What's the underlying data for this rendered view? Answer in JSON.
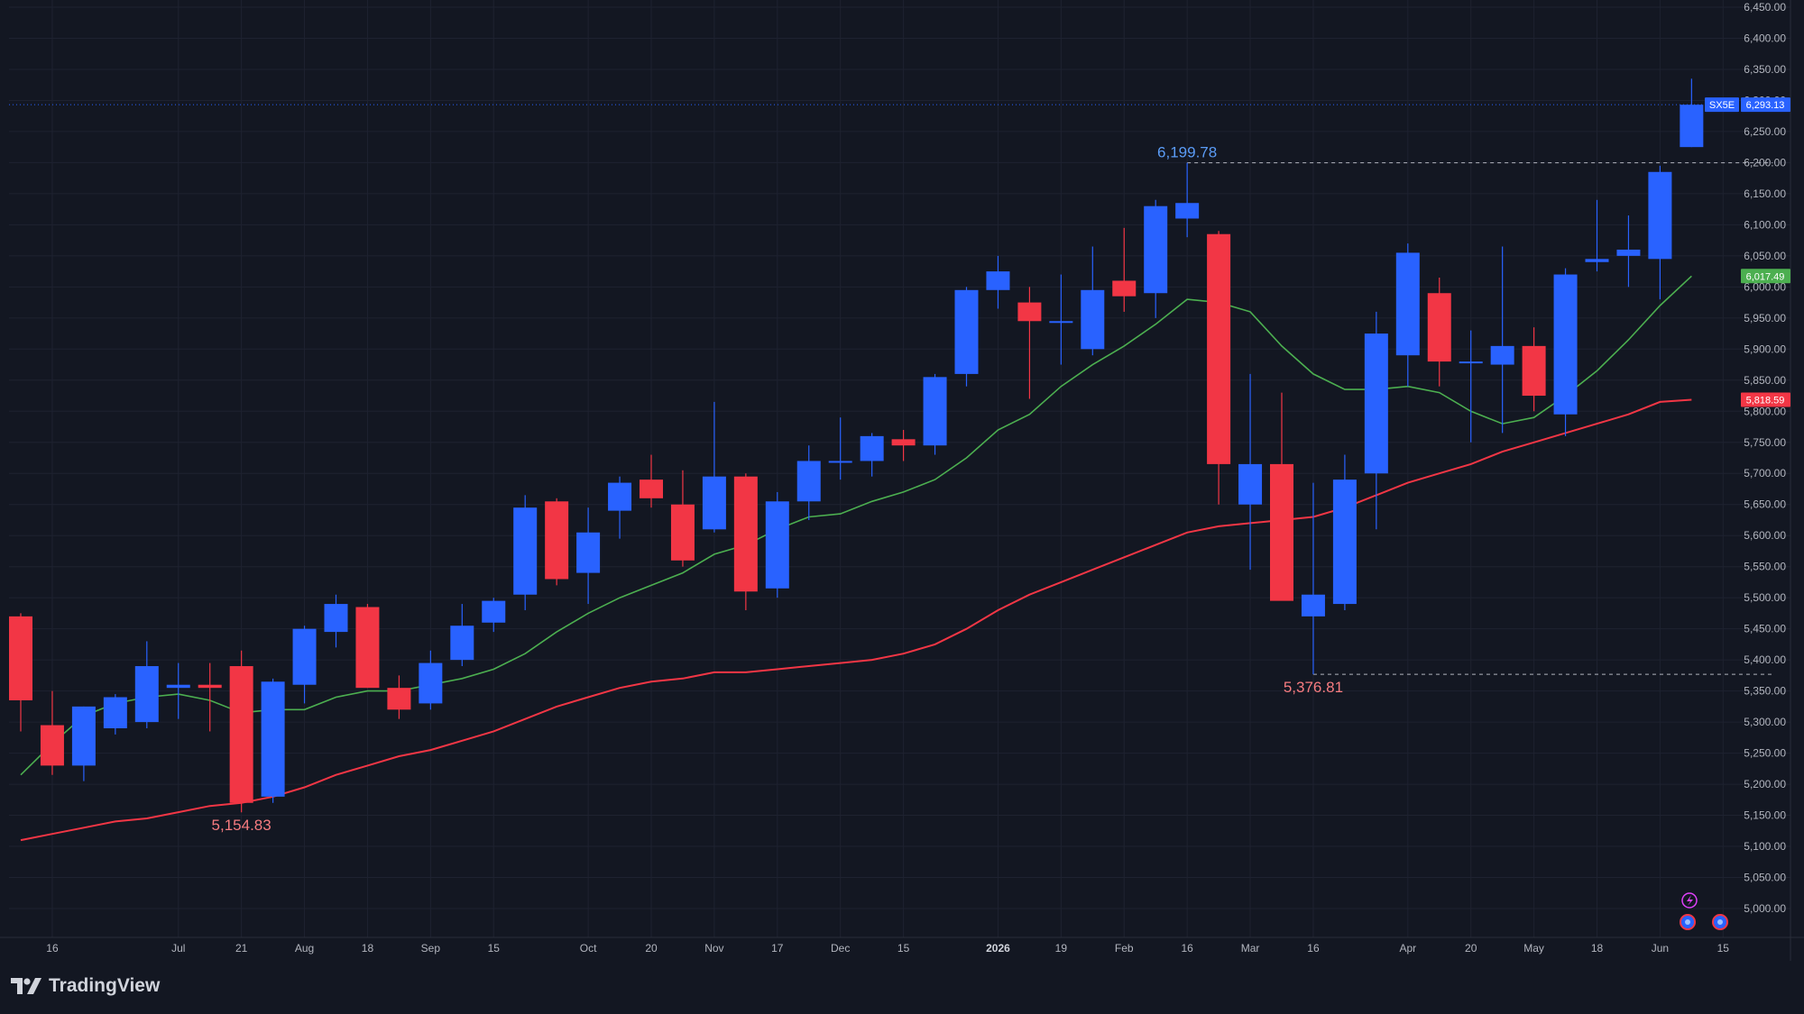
{
  "branding": {
    "name": "TradingView",
    "logo_icon": "tradingview-logo-icon"
  },
  "colors": {
    "background": "#131722",
    "grid": "#1e2230",
    "up": "#2962ff",
    "down": "#f23645",
    "ma_fast": "#4caf50",
    "ma_slow": "#f23645",
    "axis_text": "#b2b5be",
    "high_label": "#5b9cf6",
    "low_label": "#f77c80"
  },
  "chart_data": {
    "type": "candlestick",
    "symbol": "SX5E",
    "timeframe": "weekly",
    "ylim": [
      4950,
      6460
    ],
    "y_ticks": [
      5000,
      5050,
      5100,
      5150,
      5200,
      5250,
      5300,
      5350,
      5400,
      5450,
      5500,
      5550,
      5600,
      5650,
      5700,
      5750,
      5800,
      5850,
      5900,
      5950,
      6000,
      6050,
      6100,
      6150,
      6200,
      6250,
      6300,
      6350,
      6400,
      6450
    ],
    "y_tick_labels": [
      "5,000.00",
      "5,050.00",
      "5,100.00",
      "5,150.00",
      "5,200.00",
      "5,250.00",
      "5,300.00",
      "5,350.00",
      "5,400.00",
      "5,450.00",
      "5,500.00",
      "5,550.00",
      "5,600.00",
      "5,650.00",
      "5,700.00",
      "5,750.00",
      "5,800.00",
      "5,850.00",
      "5,900.00",
      "5,950.00",
      "6,000.00",
      "6,050.00",
      "6,100.00",
      "6,150.00",
      "6,200.00",
      "6,250.00",
      "6,300.00",
      "6,350.00",
      "6,400.00",
      "6,450.00"
    ],
    "x_ticks": [
      {
        "i": 1,
        "label": "16"
      },
      {
        "i": 5,
        "label": "Jul"
      },
      {
        "i": 7,
        "label": "21"
      },
      {
        "i": 9,
        "label": "Aug"
      },
      {
        "i": 11,
        "label": "18"
      },
      {
        "i": 13,
        "label": "Sep"
      },
      {
        "i": 15,
        "label": "15"
      },
      {
        "i": 18,
        "label": "Oct"
      },
      {
        "i": 20,
        "label": "20"
      },
      {
        "i": 22,
        "label": "Nov"
      },
      {
        "i": 24,
        "label": "17"
      },
      {
        "i": 26,
        "label": "Dec"
      },
      {
        "i": 28,
        "label": "15"
      },
      {
        "i": 31,
        "label": "2026"
      },
      {
        "i": 33,
        "label": "19"
      },
      {
        "i": 35,
        "label": "Feb"
      },
      {
        "i": 37,
        "label": "16"
      },
      {
        "i": 39,
        "label": "Mar"
      },
      {
        "i": 41,
        "label": "16"
      },
      {
        "i": 44,
        "label": "Apr"
      },
      {
        "i": 46,
        "label": "20"
      },
      {
        "i": 48,
        "label": "May"
      },
      {
        "i": 50,
        "label": "18"
      },
      {
        "i": 52,
        "label": "Jun"
      },
      {
        "i": 54,
        "label": "15"
      }
    ],
    "candles": [
      {
        "o": 5470,
        "h": 5475,
        "l": 5285,
        "c": 5335
      },
      {
        "o": 5295,
        "h": 5350,
        "l": 5215,
        "c": 5230
      },
      {
        "o": 5230,
        "h": 5325,
        "l": 5205,
        "c": 5325
      },
      {
        "o": 5290,
        "h": 5345,
        "l": 5280,
        "c": 5340
      },
      {
        "o": 5300,
        "h": 5430,
        "l": 5290,
        "c": 5390
      },
      {
        "o": 5355,
        "h": 5395,
        "l": 5305,
        "c": 5360
      },
      {
        "o": 5360,
        "h": 5395,
        "l": 5285,
        "c": 5355
      },
      {
        "o": 5390,
        "h": 5415,
        "l": 5154.83,
        "c": 5170
      },
      {
        "o": 5180,
        "h": 5370,
        "l": 5170,
        "c": 5365
      },
      {
        "o": 5360,
        "h": 5455,
        "l": 5330,
        "c": 5450
      },
      {
        "o": 5445,
        "h": 5505,
        "l": 5420,
        "c": 5490
      },
      {
        "o": 5485,
        "h": 5490,
        "l": 5355,
        "c": 5355
      },
      {
        "o": 5355,
        "h": 5375,
        "l": 5305,
        "c": 5320
      },
      {
        "o": 5330,
        "h": 5415,
        "l": 5320,
        "c": 5395
      },
      {
        "o": 5400,
        "h": 5490,
        "l": 5390,
        "c": 5455
      },
      {
        "o": 5460,
        "h": 5500,
        "l": 5445,
        "c": 5495
      },
      {
        "o": 5505,
        "h": 5665,
        "l": 5480,
        "c": 5645
      },
      {
        "o": 5655,
        "h": 5660,
        "l": 5520,
        "c": 5530
      },
      {
        "o": 5540,
        "h": 5645,
        "l": 5490,
        "c": 5605
      },
      {
        "o": 5640,
        "h": 5695,
        "l": 5595,
        "c": 5685
      },
      {
        "o": 5690,
        "h": 5730,
        "l": 5645,
        "c": 5660
      },
      {
        "o": 5650,
        "h": 5705,
        "l": 5550,
        "c": 5560
      },
      {
        "o": 5610,
        "h": 5815,
        "l": 5605,
        "c": 5695
      },
      {
        "o": 5695,
        "h": 5700,
        "l": 5480,
        "c": 5510
      },
      {
        "o": 5515,
        "h": 5670,
        "l": 5500,
        "c": 5655
      },
      {
        "o": 5655,
        "h": 5745,
        "l": 5625,
        "c": 5720
      },
      {
        "o": 5720,
        "h": 5790,
        "l": 5690,
        "c": 5720
      },
      {
        "o": 5720,
        "h": 5765,
        "l": 5695,
        "c": 5760
      },
      {
        "o": 5755,
        "h": 5770,
        "l": 5720,
        "c": 5745
      },
      {
        "o": 5745,
        "h": 5860,
        "l": 5730,
        "c": 5855
      },
      {
        "o": 5860,
        "h": 6000,
        "l": 5840,
        "c": 5995
      },
      {
        "o": 5995,
        "h": 6050,
        "l": 5965,
        "c": 6025
      },
      {
        "o": 5975,
        "h": 6000,
        "l": 5820,
        "c": 5945
      },
      {
        "o": 5945,
        "h": 6020,
        "l": 5875,
        "c": 5945
      },
      {
        "o": 5900,
        "h": 6065,
        "l": 5890,
        "c": 5995
      },
      {
        "o": 6010,
        "h": 6095,
        "l": 5960,
        "c": 5985
      },
      {
        "o": 5990,
        "h": 6140,
        "l": 5950,
        "c": 6130
      },
      {
        "o": 6110,
        "h": 6199.78,
        "l": 6080,
        "c": 6135
      },
      {
        "o": 6085,
        "h": 6090,
        "l": 5650,
        "c": 5715
      },
      {
        "o": 5650,
        "h": 5860,
        "l": 5545,
        "c": 5715
      },
      {
        "o": 5715,
        "h": 5830,
        "l": 5500,
        "c": 5495
      },
      {
        "o": 5470,
        "h": 5685,
        "l": 5376.81,
        "c": 5505
      },
      {
        "o": 5490,
        "h": 5730,
        "l": 5480,
        "c": 5690
      },
      {
        "o": 5700,
        "h": 5960,
        "l": 5610,
        "c": 5925
      },
      {
        "o": 5890,
        "h": 6070,
        "l": 5840,
        "c": 6055
      },
      {
        "o": 5990,
        "h": 6015,
        "l": 5840,
        "c": 5880
      },
      {
        "o": 5880,
        "h": 5930,
        "l": 5750,
        "c": 5880
      },
      {
        "o": 5875,
        "h": 6065,
        "l": 5765,
        "c": 5905
      },
      {
        "o": 5905,
        "h": 5935,
        "l": 5800,
        "c": 5825
      },
      {
        "o": 5795,
        "h": 6030,
        "l": 5760,
        "c": 6020
      },
      {
        "o": 6040,
        "h": 6140,
        "l": 6025,
        "c": 6045
      },
      {
        "o": 6050,
        "h": 6115,
        "l": 6000,
        "c": 6060
      },
      {
        "o": 6045,
        "h": 6195,
        "l": 5980,
        "c": 6185
      },
      {
        "o": 6225,
        "h": 6335,
        "l": 6225,
        "c": 6293.13
      }
    ],
    "series": [
      {
        "name": "",
        "color": "#4caf50",
        "values": [
          5215,
          5265,
          5310,
          5330,
          5340,
          5345,
          5335,
          5315,
          5320,
          5320,
          5340,
          5350,
          5350,
          5360,
          5370,
          5385,
          5410,
          5445,
          5475,
          5500,
          5520,
          5540,
          5570,
          5585,
          5610,
          5630,
          5635,
          5655,
          5670,
          5690,
          5725,
          5770,
          5795,
          5840,
          5875,
          5905,
          5940,
          5980,
          5975,
          5960,
          5905,
          5860,
          5835,
          5835,
          5840,
          5830,
          5800,
          5780,
          5790,
          5825,
          5865,
          5915,
          5970,
          6017.49
        ]
      },
      {
        "name": "",
        "color": "#f23645",
        "values": [
          5110,
          5120,
          5130,
          5140,
          5145,
          5155,
          5165,
          5170,
          5180,
          5195,
          5215,
          5230,
          5245,
          5255,
          5270,
          5285,
          5305,
          5325,
          5340,
          5355,
          5365,
          5370,
          5380,
          5380,
          5385,
          5390,
          5395,
          5400,
          5410,
          5425,
          5450,
          5480,
          5505,
          5525,
          5545,
          5565,
          5585,
          5605,
          5615,
          5620,
          5625,
          5630,
          5645,
          5665,
          5685,
          5700,
          5715,
          5735,
          5750,
          5765,
          5780,
          5795,
          5815,
          5818.59
        ]
      }
    ],
    "price_labels": [
      {
        "text": "SX5E",
        "value_text": "6,293.13",
        "value": 6293.13,
        "color": "#2962ff"
      },
      {
        "text": "",
        "value_text": "6,017.49",
        "value": 6017.49,
        "color": "#4caf50"
      },
      {
        "text": "",
        "value_text": "5,818.59",
        "value": 5818.59,
        "color": "#f23645"
      }
    ],
    "annotations": [
      {
        "text": "6,199.78",
        "value": 6199.78,
        "index": 37,
        "color": "#5b9cf6",
        "kind": "high",
        "extend_to": 55
      },
      {
        "text": "5,376.81",
        "value": 5376.81,
        "index": 41,
        "color": "#f77c80",
        "kind": "low",
        "extend_to": 55
      },
      {
        "text": "5,154.83",
        "value": 5154.83,
        "index": 7,
        "color": "#f77c80",
        "kind": "low"
      }
    ]
  }
}
